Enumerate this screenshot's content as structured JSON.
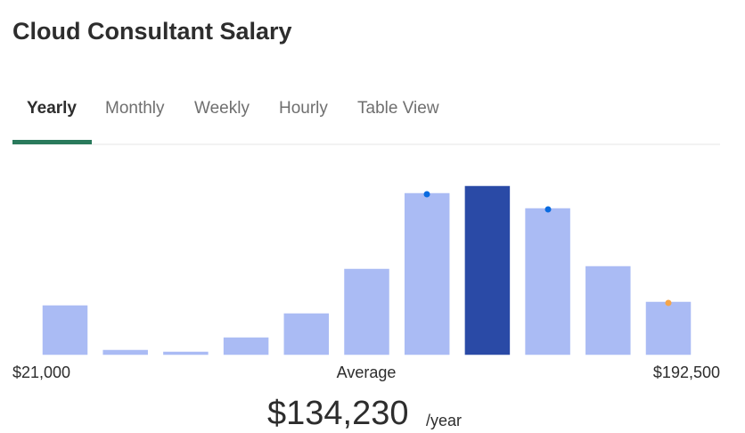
{
  "header": {
    "title": "Cloud Consultant Salary"
  },
  "tabs": [
    "Yearly",
    "Monthly",
    "Weekly",
    "Hourly",
    "Table View"
  ],
  "chart_data": {
    "type": "bar",
    "values": [
      57,
      7,
      5,
      21,
      48,
      98,
      183,
      191,
      166,
      101,
      61
    ],
    "colors": [
      "#aabbf4",
      "#aabbf4",
      "#aabbf4",
      "#aabbf4",
      "#aabbf4",
      "#aabbf4",
      "#aabbf4",
      "#2a4aa6",
      "#aabbf4",
      "#aabbf4",
      "#aabbf4"
    ],
    "ylim": [
      0,
      200
    ],
    "xticks": [
      {
        "value": 21000,
        "label": "$21,000"
      },
      {
        "value": 192500,
        "label": "$192,500"
      }
    ],
    "average_label": "Average",
    "average": {
      "value": 134230,
      "label": "$134,230"
    },
    "unit": "/year"
  }
}
